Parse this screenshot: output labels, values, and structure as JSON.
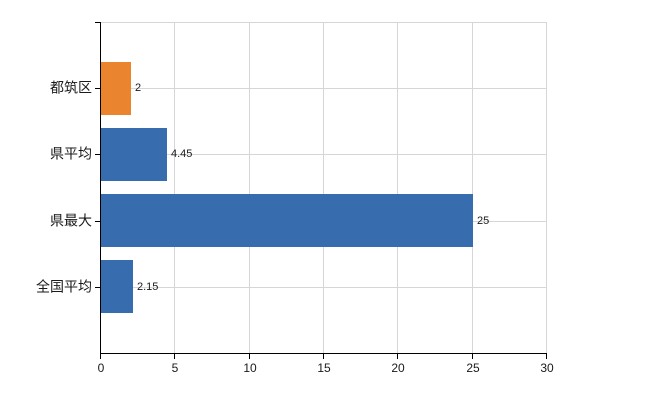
{
  "chart_data": {
    "type": "bar",
    "orientation": "horizontal",
    "title": "",
    "xlabel": "",
    "ylabel": "",
    "categories": [
      "都筑区",
      "県平均",
      "県最大",
      "全国平均"
    ],
    "values": [
      2,
      4.45,
      25,
      2.15
    ],
    "value_labels": [
      "2",
      "4.45",
      "25",
      "2.15"
    ],
    "bar_colors": [
      "#eb842f",
      "#376dae",
      "#376dae",
      "#376dae"
    ],
    "x_ticks": [
      "0",
      "5",
      "10",
      "15",
      "20",
      "25",
      "30"
    ],
    "x_tick_values": [
      0,
      5,
      10,
      15,
      20,
      25,
      30
    ],
    "xlim": [
      0,
      30
    ],
    "grid": "on",
    "legend": "none"
  },
  "colors": {
    "bar_orange": "#eb842f",
    "bar_blue": "#376dae",
    "gridline": "#d6d6d6",
    "axis": "#000000",
    "text": "#1a1a1a",
    "background": "#ffffff"
  }
}
